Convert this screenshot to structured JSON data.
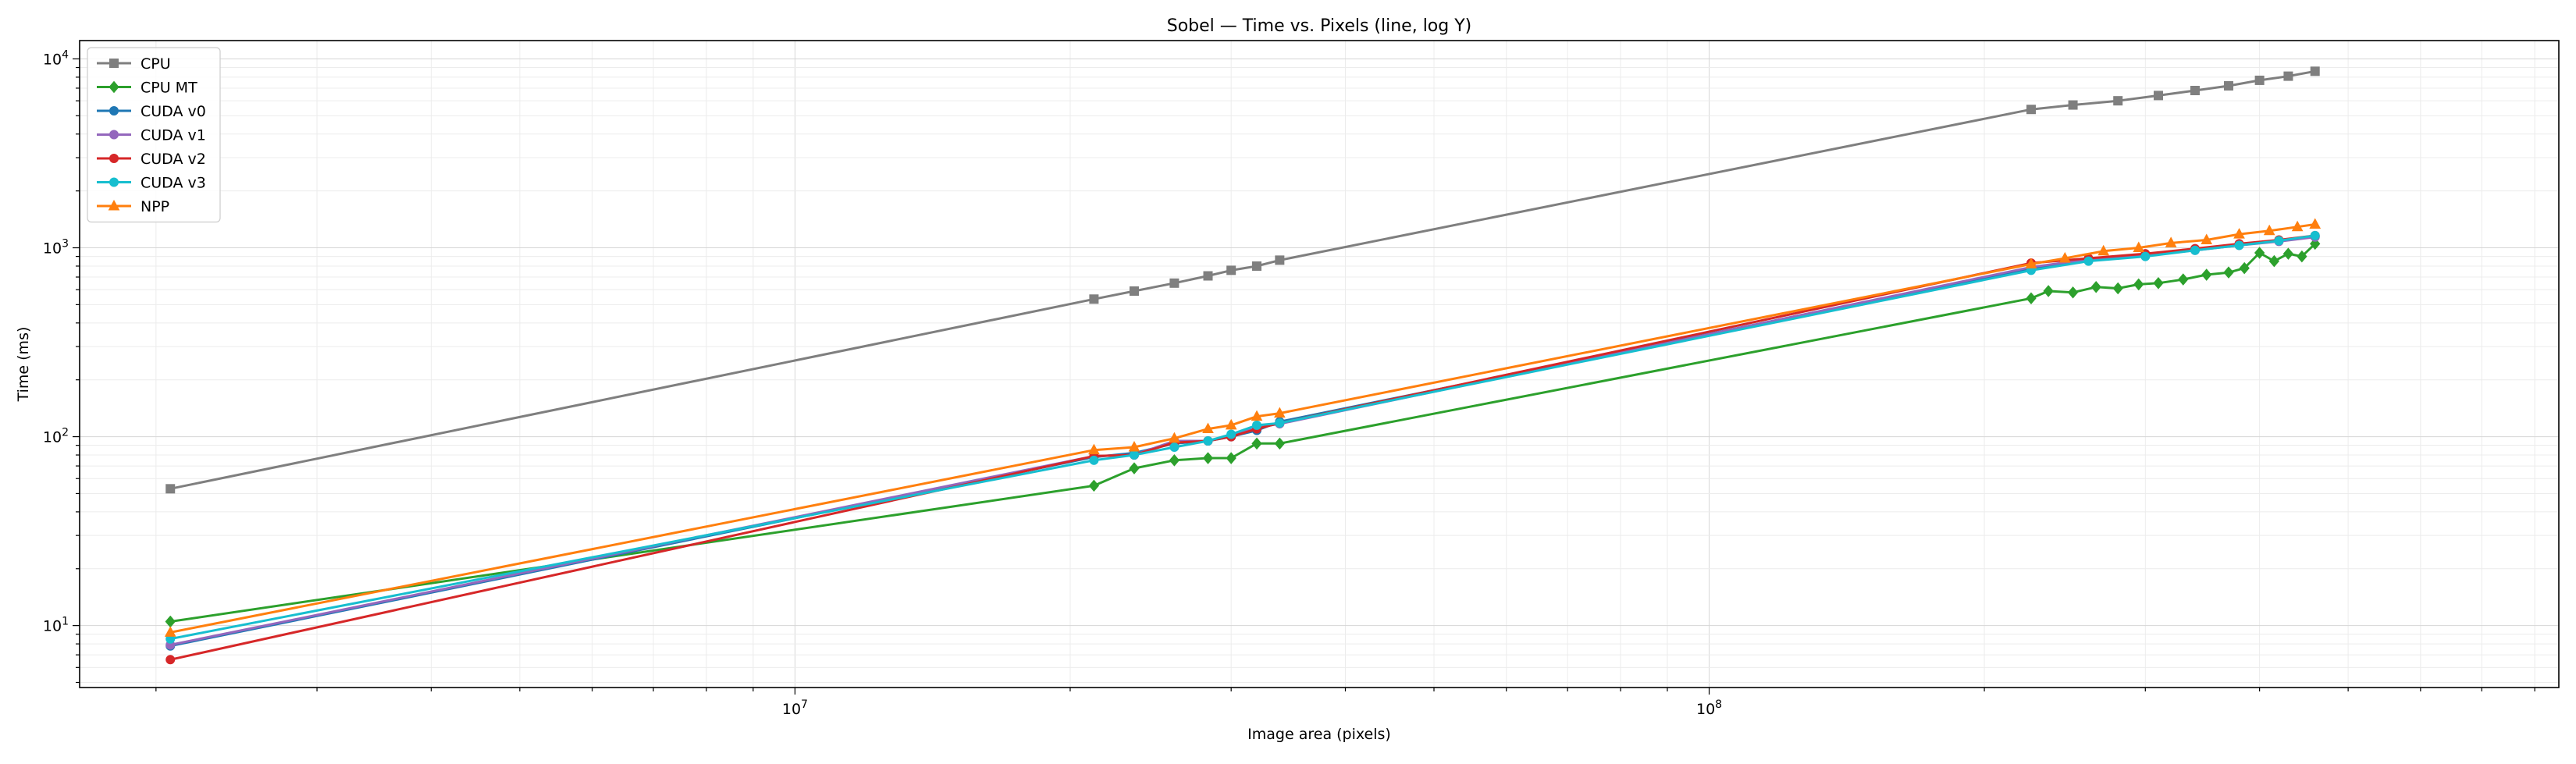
{
  "chart_data": {
    "type": "line",
    "title": "Sobel — Time vs. Pixels (line, log Y)",
    "xlabel": "Image area (pixels)",
    "ylabel": "Time (ms)",
    "xscale": "log",
    "yscale": "log",
    "xlim": [
      1650000,
      850000000
    ],
    "ylim": [
      4.7,
      12500
    ],
    "grid": true,
    "legend_position": "top-left",
    "x_tick_labels": [
      "10^7",
      "10^8"
    ],
    "y_tick_labels": [
      "10^1",
      "10^2",
      "10^3",
      "10^4"
    ],
    "series": [
      {
        "name": "CPU",
        "color": "#7f7f7f",
        "marker": "square",
        "x": [
          2073600,
          21233664,
          23500000,
          26000000,
          28300000,
          30000000,
          32000000,
          33900000,
          225000000,
          250000000,
          280000000,
          310000000,
          340000000,
          370000000,
          400000000,
          430000000,
          460000000
        ],
        "y": [
          53,
          535,
          590,
          650,
          710,
          760,
          800,
          860,
          5400,
          5700,
          6000,
          6400,
          6800,
          7200,
          7700,
          8100,
          8600
        ]
      },
      {
        "name": "CPU MT",
        "color": "#2ca02c",
        "marker": "diamond",
        "x": [
          2073600,
          21233664,
          23500000,
          26000000,
          28300000,
          30000000,
          32000000,
          33900000,
          225000000,
          235000000,
          250000000,
          265000000,
          280000000,
          295000000,
          310000000,
          330000000,
          350000000,
          370000000,
          385000000,
          400000000,
          415000000,
          430000000,
          445000000,
          460000000
        ],
        "y": [
          10.5,
          55,
          68,
          75,
          77,
          77,
          92,
          92,
          540,
          590,
          580,
          620,
          610,
          640,
          650,
          680,
          720,
          740,
          780,
          940,
          850,
          930,
          900,
          1050
        ]
      },
      {
        "name": "CUDA v0",
        "color": "#1f77b4",
        "marker": "circle",
        "x": [
          2073600,
          21233664,
          23500000,
          26000000,
          28300000,
          30000000,
          32000000,
          33900000,
          225000000,
          260000000,
          300000000,
          340000000,
          380000000,
          420000000,
          460000000
        ],
        "y": [
          7.8,
          78,
          82,
          92,
          95,
          100,
          108,
          120,
          780,
          860,
          920,
          980,
          1040,
          1090,
          1150
        ]
      },
      {
        "name": "CUDA v1",
        "color": "#9467bd",
        "marker": "circle",
        "x": [
          2073600,
          21233664,
          23500000,
          26000000,
          28300000,
          30000000,
          32000000,
          33900000,
          225000000,
          260000000,
          300000000,
          340000000,
          380000000,
          420000000,
          460000000
        ],
        "y": [
          7.9,
          79,
          80,
          95,
          95,
          101,
          112,
          117,
          790,
          870,
          910,
          970,
          1030,
          1080,
          1140
        ]
      },
      {
        "name": "CUDA v2",
        "color": "#d62728",
        "marker": "circle",
        "x": [
          2073600,
          21233664,
          23500000,
          26000000,
          28300000,
          30000000,
          32000000,
          33900000,
          225000000,
          260000000,
          300000000,
          340000000,
          380000000,
          420000000,
          460000000
        ],
        "y": [
          6.6,
          79,
          80,
          93,
          95,
          100,
          110,
          118,
          830,
          880,
          930,
          990,
          1050,
          1100,
          1160
        ]
      },
      {
        "name": "CUDA v3",
        "color": "#17becf",
        "marker": "circle",
        "x": [
          2073600,
          21233664,
          23500000,
          26000000,
          28300000,
          30000000,
          32000000,
          33900000,
          225000000,
          260000000,
          300000000,
          340000000,
          380000000,
          420000000,
          460000000
        ],
        "y": [
          8.5,
          75,
          80,
          88,
          95,
          103,
          115,
          118,
          760,
          850,
          900,
          970,
          1030,
          1090,
          1160
        ]
      },
      {
        "name": "NPP",
        "color": "#ff7f0e",
        "marker": "triangle",
        "x": [
          2073600,
          21233664,
          23500000,
          26000000,
          28300000,
          30000000,
          32000000,
          33900000,
          225000000,
          245000000,
          270000000,
          295000000,
          320000000,
          350000000,
          380000000,
          410000000,
          440000000,
          460000000
        ],
        "y": [
          9.2,
          85,
          88,
          98,
          110,
          115,
          128,
          133,
          820,
          880,
          960,
          1000,
          1060,
          1100,
          1180,
          1230,
          1290,
          1330
        ]
      }
    ]
  }
}
